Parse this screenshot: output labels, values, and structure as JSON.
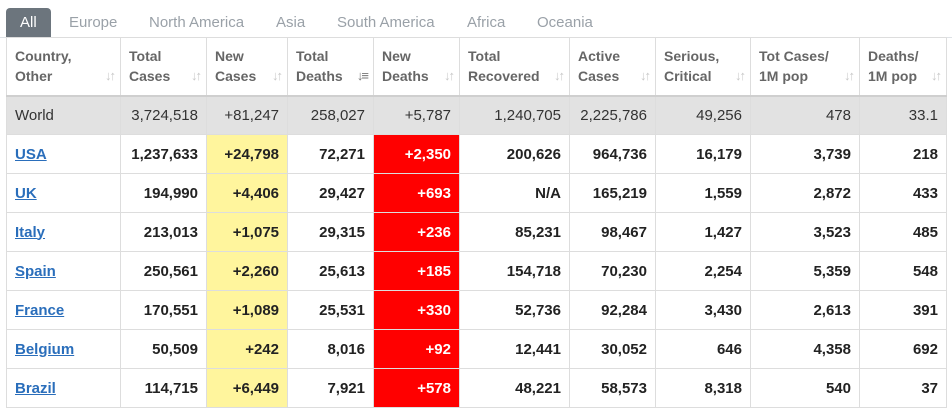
{
  "tabs": [
    "All",
    "Europe",
    "North America",
    "Asia",
    "South America",
    "Africa",
    "Oceania"
  ],
  "active_tab": "All",
  "columns": [
    {
      "l1": "Country,",
      "l2": "Other"
    },
    {
      "l1": "Total",
      "l2": "Cases"
    },
    {
      "l1": "New",
      "l2": "Cases"
    },
    {
      "l1": "Total",
      "l2": "Deaths"
    },
    {
      "l1": "New",
      "l2": "Deaths"
    },
    {
      "l1": "Total",
      "l2": "Recovered"
    },
    {
      "l1": "Active",
      "l2": "Cases"
    },
    {
      "l1": "Serious,",
      "l2": "Critical"
    },
    {
      "l1": "Tot Cases/",
      "l2": "1M pop"
    },
    {
      "l1": "Deaths/",
      "l2": "1M pop"
    }
  ],
  "sorted_column": "Total Deaths",
  "world": [
    "World",
    "3,724,518",
    "+81,247",
    "258,027",
    "+5,787",
    "1,240,705",
    "2,225,786",
    "49,256",
    "478",
    "33.1"
  ],
  "rows": [
    [
      "USA",
      "1,237,633",
      "+24,798",
      "72,271",
      "+2,350",
      "200,626",
      "964,736",
      "16,179",
      "3,739",
      "218"
    ],
    [
      "UK",
      "194,990",
      "+4,406",
      "29,427",
      "+693",
      "N/A",
      "165,219",
      "1,559",
      "2,872",
      "433"
    ],
    [
      "Italy",
      "213,013",
      "+1,075",
      "29,315",
      "+236",
      "85,231",
      "98,467",
      "1,427",
      "3,523",
      "485"
    ],
    [
      "Spain",
      "250,561",
      "+2,260",
      "25,613",
      "+185",
      "154,718",
      "70,230",
      "2,254",
      "5,359",
      "548"
    ],
    [
      "France",
      "170,551",
      "+1,089",
      "25,531",
      "+330",
      "52,736",
      "92,284",
      "3,430",
      "2,613",
      "391"
    ],
    [
      "Belgium",
      "50,509",
      "+242",
      "8,016",
      "+92",
      "12,441",
      "30,052",
      "646",
      "4,358",
      "692"
    ],
    [
      "Brazil",
      "114,715",
      "+6,449",
      "7,921",
      "+578",
      "48,221",
      "58,573",
      "8,318",
      "540",
      "37"
    ]
  ],
  "colors": {
    "new_cases_bg": "#fff59d",
    "new_deaths_bg": "#ff0000",
    "link": "#2a6ebb",
    "active_tab_bg": "#6c757d"
  }
}
